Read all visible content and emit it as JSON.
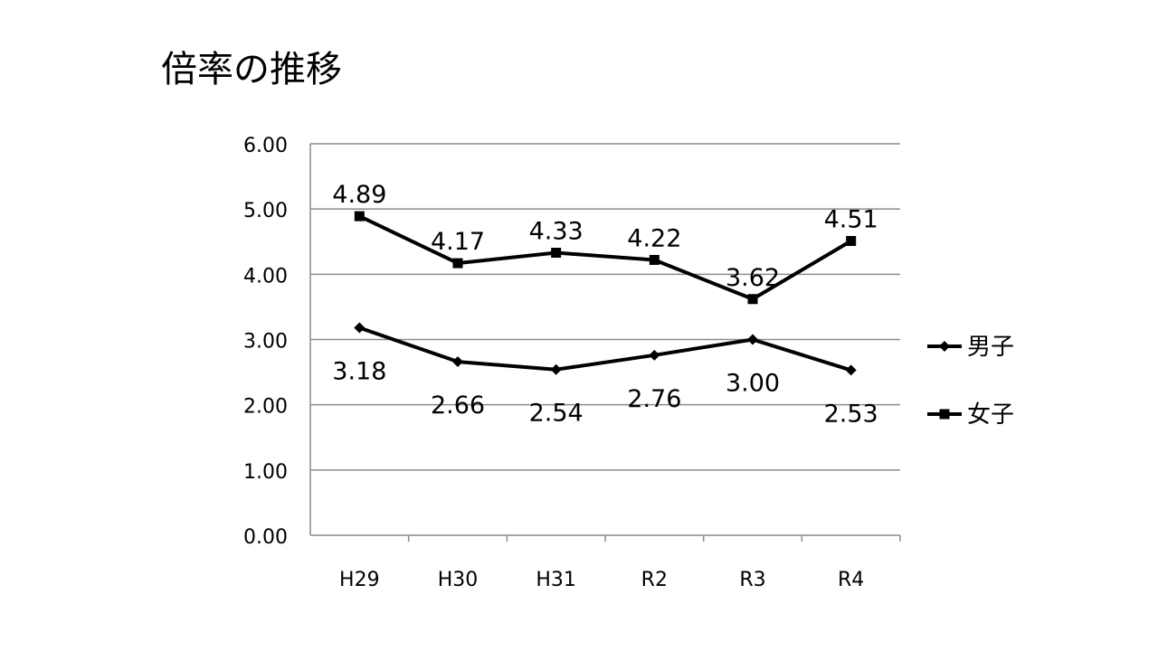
{
  "slide": {
    "title": "倍率の推移"
  },
  "chart_data": {
    "type": "line",
    "title": "倍率の推移",
    "xlabel": "",
    "ylabel": "",
    "categories": [
      "H29",
      "H30",
      "H31",
      "R2",
      "R3",
      "R4"
    ],
    "ylim": [
      0,
      6
    ],
    "y_ticks": [
      "0.00",
      "1.00",
      "2.00",
      "3.00",
      "4.00",
      "5.00",
      "6.00"
    ],
    "grid": true,
    "legend_position": "right",
    "series": [
      {
        "name": "男子",
        "marker": "diamond",
        "color": "#000000",
        "values": [
          3.18,
          2.66,
          2.54,
          2.76,
          3.0,
          2.53
        ],
        "labels": [
          "3.18",
          "2.66",
          "2.54",
          "2.76",
          "3.00",
          "2.53"
        ],
        "label_position": "below"
      },
      {
        "name": "女子",
        "marker": "square",
        "color": "#000000",
        "values": [
          4.89,
          4.17,
          4.33,
          4.22,
          3.62,
          4.51
        ],
        "labels": [
          "4.89",
          "4.17",
          "4.33",
          "4.22",
          "3.62",
          "4.51"
        ],
        "label_position": "above"
      }
    ]
  }
}
